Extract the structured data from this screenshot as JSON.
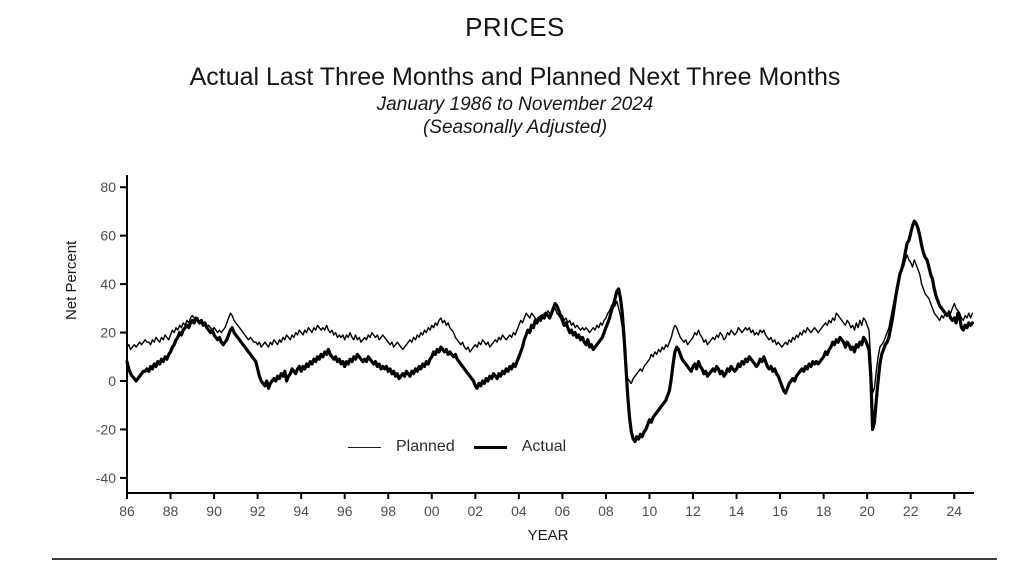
{
  "chart_data": {
    "type": "line",
    "title": "PRICES",
    "subtitle": "Actual Last Three Months and Planned Next Three Months",
    "period_label": "January 1986 to November 2024",
    "adjustment_label": "(Seasonally Adjusted)",
    "xlabel": "YEAR",
    "ylabel": "Net Percent",
    "x_start_year": 1986,
    "x_end_label": "November 2024",
    "points_per_year": 12,
    "ylim": [
      -45,
      85
    ],
    "grid": false,
    "line_color": "#000000",
    "tick_label_color": "#4d4d4d",
    "legend_position": "inside-bottom-center",
    "x_ticks": [
      {
        "label": "86",
        "year": 1986
      },
      {
        "label": "88",
        "year": 1988
      },
      {
        "label": "90",
        "year": 1990
      },
      {
        "label": "92",
        "year": 1992
      },
      {
        "label": "94",
        "year": 1994
      },
      {
        "label": "96",
        "year": 1996
      },
      {
        "label": "98",
        "year": 1998
      },
      {
        "label": "00",
        "year": 2000
      },
      {
        "label": "02",
        "year": 2002
      },
      {
        "label": "04",
        "year": 2004
      },
      {
        "label": "06",
        "year": 2006
      },
      {
        "label": "08",
        "year": 2008
      },
      {
        "label": "10",
        "year": 2010
      },
      {
        "label": "12",
        "year": 2012
      },
      {
        "label": "14",
        "year": 2014
      },
      {
        "label": "16",
        "year": 2016
      },
      {
        "label": "18",
        "year": 2018
      },
      {
        "label": "20",
        "year": 2020
      },
      {
        "label": "22",
        "year": 2022
      },
      {
        "label": "24",
        "year": 2024
      }
    ],
    "y_ticks": [
      {
        "label": "80",
        "value": 80
      },
      {
        "label": "60",
        "value": 60
      },
      {
        "label": "40",
        "value": 40
      },
      {
        "label": "20",
        "value": 20
      },
      {
        "label": "0",
        "value": 0
      },
      {
        "label": "-20",
        "value": -20
      },
      {
        "label": "-40",
        "value": -40
      }
    ],
    "series": [
      {
        "name": "Planned",
        "style": "thin",
        "values": [
          14,
          15,
          13,
          14,
          15,
          14,
          15,
          16,
          15,
          16,
          17,
          16,
          16,
          15,
          17,
          16,
          18,
          17,
          16,
          18,
          17,
          19,
          18,
          17,
          19,
          21,
          20,
          22,
          21,
          23,
          22,
          24,
          23,
          25,
          24,
          26,
          27,
          26,
          25,
          26,
          24,
          25,
          23,
          24,
          22,
          23,
          22,
          21,
          22,
          21,
          20,
          21,
          20,
          21,
          22,
          24,
          26,
          28,
          27,
          25,
          24,
          23,
          22,
          21,
          20,
          19,
          18,
          17,
          18,
          17,
          16,
          16,
          15,
          16,
          14,
          15,
          16,
          15,
          14,
          16,
          15,
          17,
          16,
          15,
          17,
          16,
          18,
          17,
          19,
          18,
          17,
          19,
          18,
          20,
          19,
          21,
          20,
          19,
          21,
          20,
          22,
          21,
          20,
          22,
          21,
          23,
          22,
          21,
          22,
          21,
          23,
          21,
          20,
          21,
          19,
          20,
          18,
          19,
          18,
          19,
          17,
          19,
          18,
          20,
          18,
          17,
          19,
          17,
          18,
          16,
          17,
          18,
          17,
          19,
          18,
          20,
          19,
          18,
          19,
          17,
          18,
          19,
          18,
          17,
          16,
          15,
          16,
          14,
          15,
          16,
          15,
          14,
          13,
          14,
          15,
          16,
          17,
          16,
          18,
          17,
          19,
          18,
          20,
          19,
          21,
          20,
          22,
          21,
          23,
          22,
          24,
          23,
          25,
          26,
          24,
          25,
          23,
          24,
          22,
          21,
          20,
          18,
          17,
          16,
          15,
          16,
          14,
          13,
          14,
          12,
          13,
          14,
          15,
          14,
          16,
          15,
          17,
          16,
          15,
          16,
          14,
          15,
          16,
          17,
          16,
          18,
          17,
          19,
          18,
          17,
          18,
          19,
          18,
          20,
          19,
          21,
          23,
          25,
          24,
          26,
          28,
          27,
          26,
          28,
          27,
          26,
          25,
          26,
          27,
          26,
          28,
          27,
          29,
          28,
          27,
          29,
          30,
          28,
          27,
          26,
          27,
          25,
          26,
          24,
          25,
          23,
          24,
          22,
          23,
          22,
          21,
          22,
          21,
          22,
          21,
          20,
          21,
          22,
          21,
          23,
          22,
          24,
          23,
          25,
          26,
          28,
          29,
          31,
          32,
          31,
          33,
          30,
          27,
          22,
          14,
          6,
          1,
          0,
          -1,
          1,
          2,
          3,
          4,
          5,
          4,
          6,
          7,
          8,
          9,
          11,
          10,
          12,
          11,
          13,
          12,
          14,
          13,
          15,
          14,
          16,
          18,
          21,
          23,
          22,
          20,
          18,
          17,
          16,
          17,
          15,
          16,
          17,
          18,
          20,
          19,
          21,
          19,
          18,
          16,
          17,
          15,
          16,
          17,
          18,
          17,
          19,
          18,
          20,
          19,
          17,
          18,
          20,
          19,
          21,
          20,
          19,
          20,
          22,
          21,
          20,
          21,
          22,
          21,
          22,
          20,
          21,
          19,
          20,
          19,
          21,
          20,
          21,
          19,
          18,
          17,
          18,
          16,
          17,
          15,
          16,
          15,
          14,
          15,
          16,
          15,
          17,
          16,
          18,
          17,
          19,
          18,
          20,
          19,
          21,
          20,
          22,
          21,
          20,
          21,
          22,
          21,
          20,
          21,
          22,
          23,
          24,
          23,
          25,
          24,
          26,
          25,
          28,
          27,
          26,
          25,
          24,
          23,
          25,
          24,
          22,
          23,
          21,
          24,
          22,
          25,
          23,
          26,
          25,
          23,
          21,
          8,
          -5,
          -3,
          4,
          10,
          14,
          15,
          16,
          18,
          20,
          22,
          26,
          30,
          34,
          38,
          41,
          44,
          46,
          47,
          50,
          52,
          50,
          49,
          47,
          50,
          48,
          46,
          44,
          40,
          38,
          36,
          35,
          34,
          32,
          30,
          28,
          27,
          26,
          25,
          27,
          26,
          28,
          27,
          29,
          28,
          30,
          32,
          30,
          29,
          28,
          26,
          25,
          27,
          26,
          28,
          26,
          28
        ]
      },
      {
        "name": "Actual",
        "style": "thick",
        "values": [
          8,
          5,
          3,
          2,
          1,
          0,
          1,
          2,
          3,
          4,
          4,
          5,
          4,
          6,
          5,
          7,
          6,
          8,
          7,
          9,
          8,
          10,
          9,
          11,
          12,
          14,
          15,
          17,
          18,
          20,
          19,
          21,
          22,
          23,
          22,
          24,
          25,
          24,
          26,
          25,
          24,
          25,
          23,
          24,
          22,
          21,
          20,
          21,
          19,
          18,
          17,
          18,
          16,
          15,
          16,
          17,
          19,
          21,
          22,
          20,
          19,
          18,
          17,
          16,
          15,
          14,
          13,
          12,
          11,
          10,
          9,
          8,
          5,
          2,
          0,
          -1,
          -2,
          0,
          -3,
          -1,
          0,
          1,
          0,
          2,
          1,
          3,
          2,
          4,
          0,
          2,
          3,
          5,
          4,
          3,
          5,
          6,
          4,
          6,
          5,
          7,
          6,
          8,
          7,
          9,
          8,
          10,
          9,
          11,
          10,
          12,
          11,
          13,
          11,
          10,
          9,
          10,
          8,
          9,
          7,
          8,
          6,
          8,
          7,
          9,
          8,
          10,
          9,
          11,
          10,
          9,
          8,
          9,
          8,
          10,
          9,
          8,
          7,
          8,
          6,
          7,
          5,
          6,
          5,
          6,
          4,
          5,
          3,
          4,
          2,
          3,
          1,
          2,
          3,
          2,
          4,
          3,
          2,
          4,
          3,
          5,
          4,
          6,
          5,
          7,
          6,
          8,
          7,
          9,
          10,
          12,
          11,
          13,
          12,
          14,
          13,
          12,
          13,
          11,
          12,
          11,
          10,
          11,
          9,
          8,
          7,
          6,
          5,
          4,
          3,
          2,
          1,
          0,
          -2,
          -3,
          -1,
          -2,
          0,
          -1,
          1,
          0,
          2,
          1,
          3,
          2,
          1,
          3,
          2,
          4,
          3,
          5,
          4,
          6,
          5,
          7,
          6,
          8,
          10,
          12,
          14,
          17,
          19,
          21,
          20,
          23,
          22,
          25,
          24,
          26,
          25,
          27,
          26,
          28,
          27,
          26,
          28,
          30,
          32,
          31,
          29,
          27,
          25,
          23,
          24,
          22,
          20,
          21,
          19,
          20,
          18,
          19,
          17,
          18,
          16,
          15,
          17,
          14,
          15,
          13,
          14,
          15,
          16,
          17,
          18,
          20,
          22,
          24,
          26,
          29,
          31,
          34,
          37,
          38,
          34,
          28,
          18,
          6,
          -6,
          -15,
          -21,
          -24,
          -25,
          -23,
          -24,
          -22,
          -23,
          -21,
          -20,
          -18,
          -16,
          -17,
          -15,
          -14,
          -13,
          -12,
          -11,
          -10,
          -9,
          -8,
          -6,
          -4,
          1,
          7,
          12,
          14,
          13,
          11,
          9,
          8,
          7,
          6,
          5,
          4,
          6,
          7,
          5,
          8,
          6,
          5,
          3,
          4,
          2,
          3,
          4,
          5,
          4,
          6,
          5,
          3,
          4,
          2,
          3,
          5,
          4,
          6,
          5,
          4,
          5,
          7,
          6,
          8,
          7,
          9,
          8,
          10,
          9,
          8,
          7,
          6,
          7,
          9,
          8,
          10,
          8,
          6,
          5,
          6,
          4,
          5,
          3,
          2,
          0,
          -2,
          -4,
          -5,
          -3,
          -1,
          0,
          1,
          0,
          2,
          3,
          4,
          5,
          4,
          6,
          5,
          7,
          6,
          8,
          7,
          8,
          7,
          8,
          9,
          10,
          12,
          11,
          13,
          14,
          16,
          15,
          17,
          16,
          18,
          17,
          16,
          14,
          16,
          15,
          13,
          14,
          12,
          15,
          14,
          16,
          15,
          18,
          17,
          15,
          13,
          2,
          -20,
          -17,
          -8,
          0,
          7,
          11,
          13,
          15,
          16,
          18,
          22,
          26,
          31,
          36,
          40,
          44,
          46,
          49,
          53,
          57,
          58,
          61,
          64,
          66,
          65,
          63,
          60,
          56,
          53,
          51,
          50,
          47,
          44,
          42,
          38,
          35,
          33,
          31,
          30,
          29,
          28,
          27,
          28,
          26,
          25,
          26,
          24,
          28,
          26,
          22,
          21,
          23,
          22,
          24,
          23,
          24
        ]
      }
    ]
  }
}
